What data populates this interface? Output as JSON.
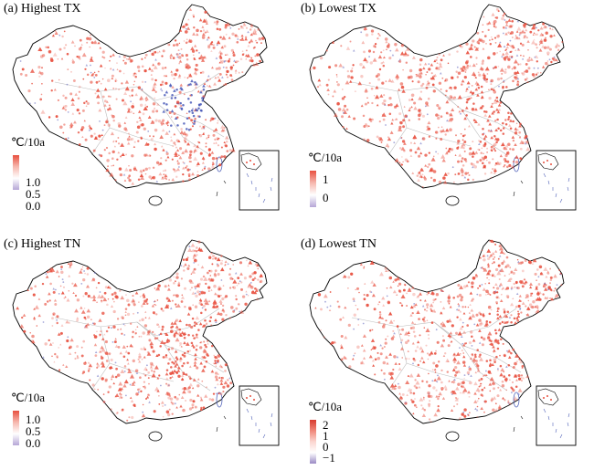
{
  "panels": [
    {
      "id": "a",
      "title": "(a) Highest TX",
      "legend": {
        "unit": "℃/10a",
        "ticks": [
          "1.0",
          "0.5",
          "0.0"
        ],
        "gradient": [
          "#e8503f",
          "#f6b7ae",
          "#ffffff",
          "#b6a6d6"
        ]
      },
      "hotspot_color": "#4a5ab8"
    },
    {
      "id": "b",
      "title": "(b) Lowest TX",
      "legend": {
        "unit": "℃/10a",
        "ticks": [
          "1",
          "0"
        ],
        "gradient": [
          "#e8503f",
          "#f6b7ae",
          "#ffffff",
          "#b6a6d6"
        ]
      },
      "hotspot_color": "#e8503f"
    },
    {
      "id": "c",
      "title": "(c) Highest TN",
      "legend": {
        "unit": "℃/10a",
        "ticks": [
          "1.0",
          "0.5",
          "0.0"
        ],
        "gradient": [
          "#e8503f",
          "#f6b7ae",
          "#ffffff",
          "#b6a6d6"
        ]
      },
      "hotspot_color": "#e8503f"
    },
    {
      "id": "d",
      "title": "(d) Lowest TN",
      "legend": {
        "unit": "℃/10a",
        "ticks": [
          "2",
          "1",
          "0",
          "−1"
        ],
        "gradient": [
          "#d73a2e",
          "#f0887a",
          "#fbd6d0",
          "#ffffff",
          "#9a8ac4"
        ]
      },
      "hotspot_color": "#e8503f"
    }
  ],
  "colors": {
    "warming": "#e8503f",
    "cooling": "#6b6fc2",
    "boundary": "#000000",
    "province": "#bdbdbd"
  }
}
